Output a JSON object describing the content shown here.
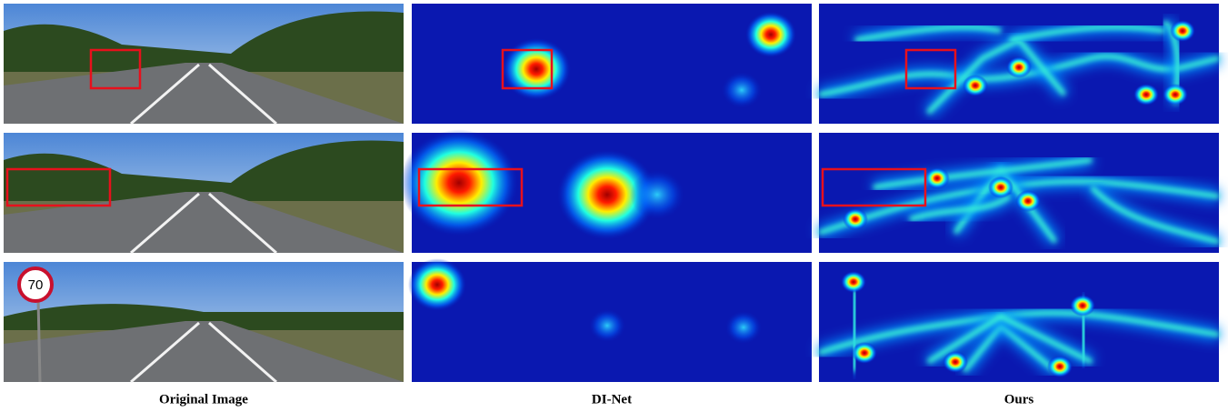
{
  "columns": [
    {
      "caption": "Original Image"
    },
    {
      "caption": "DI-Net"
    },
    {
      "caption": "Ours"
    }
  ],
  "sign_text": "70"
}
